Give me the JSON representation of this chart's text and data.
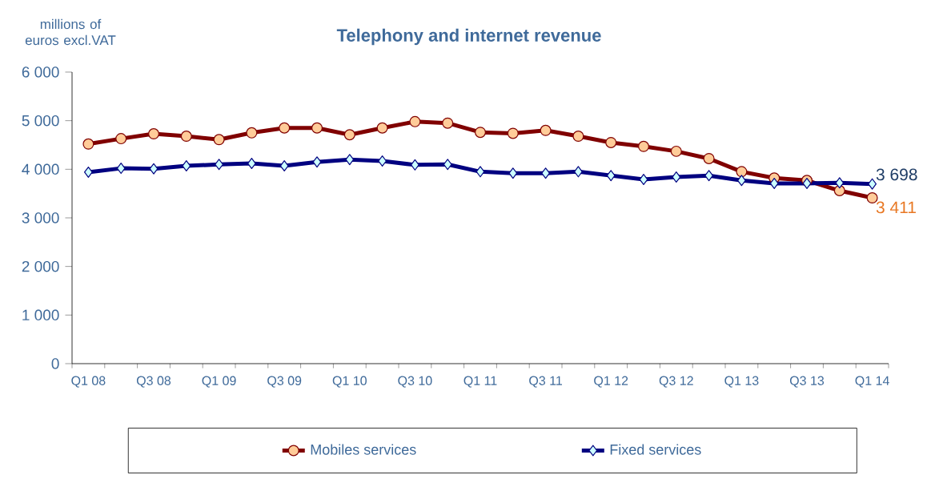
{
  "chart_data": {
    "type": "line",
    "title": "Telephony and internet revenue",
    "ylabel": "millions of euros excl.VAT",
    "categories": [
      "Q1 08",
      null,
      "Q3 08",
      null,
      "Q1 09",
      null,
      "Q3 09",
      null,
      "Q1 10",
      null,
      "Q3 10",
      null,
      "Q1 11",
      null,
      "Q3 11",
      null,
      "Q1 12",
      null,
      "Q3 12",
      null,
      "Q1 13",
      null,
      "Q3 13",
      null,
      "Q1 14"
    ],
    "series": [
      {
        "name": "Mobiles services",
        "color": "#800000",
        "marker": "circle",
        "values": [
          4520,
          4630,
          4730,
          4680,
          4610,
          4750,
          4850,
          4850,
          4710,
          4850,
          4980,
          4950,
          4760,
          4740,
          4800,
          4680,
          4550,
          4470,
          4370,
          4220,
          3950,
          3820,
          3770,
          3560,
          3411
        ],
        "value_labels": [
          null,
          null,
          null,
          null,
          null,
          null,
          null,
          null,
          null,
          null,
          null,
          null,
          null,
          null,
          null,
          null,
          null,
          null,
          null,
          null,
          null,
          null,
          null,
          null,
          "3 411"
        ]
      },
      {
        "name": "Fixed services",
        "color": "#000080",
        "marker": "diamond",
        "values": [
          3940,
          4020,
          4010,
          4070,
          4100,
          4120,
          4070,
          4150,
          4200,
          4170,
          4090,
          4100,
          3950,
          3920,
          3920,
          3950,
          3870,
          3790,
          3840,
          3870,
          3770,
          3710,
          3710,
          3720,
          3698
        ],
        "value_labels": [
          null,
          null,
          null,
          null,
          null,
          null,
          null,
          null,
          null,
          null,
          null,
          null,
          null,
          null,
          null,
          null,
          null,
          null,
          null,
          null,
          null,
          null,
          null,
          null,
          "3 698"
        ]
      }
    ],
    "ylim": [
      0,
      6000
    ],
    "yticks": [
      {
        "value": 0,
        "label": "0"
      },
      {
        "value": 1000,
        "label": "1 000"
      },
      {
        "value": 2000,
        "label": "2 000"
      },
      {
        "value": 3000,
        "label": "3 000"
      },
      {
        "value": 4000,
        "label": "4 000"
      },
      {
        "value": 5000,
        "label": "5 000"
      },
      {
        "value": 6000,
        "label": "6 000"
      }
    ],
    "legend": "bottom",
    "grid": false,
    "line_style": "solid"
  }
}
